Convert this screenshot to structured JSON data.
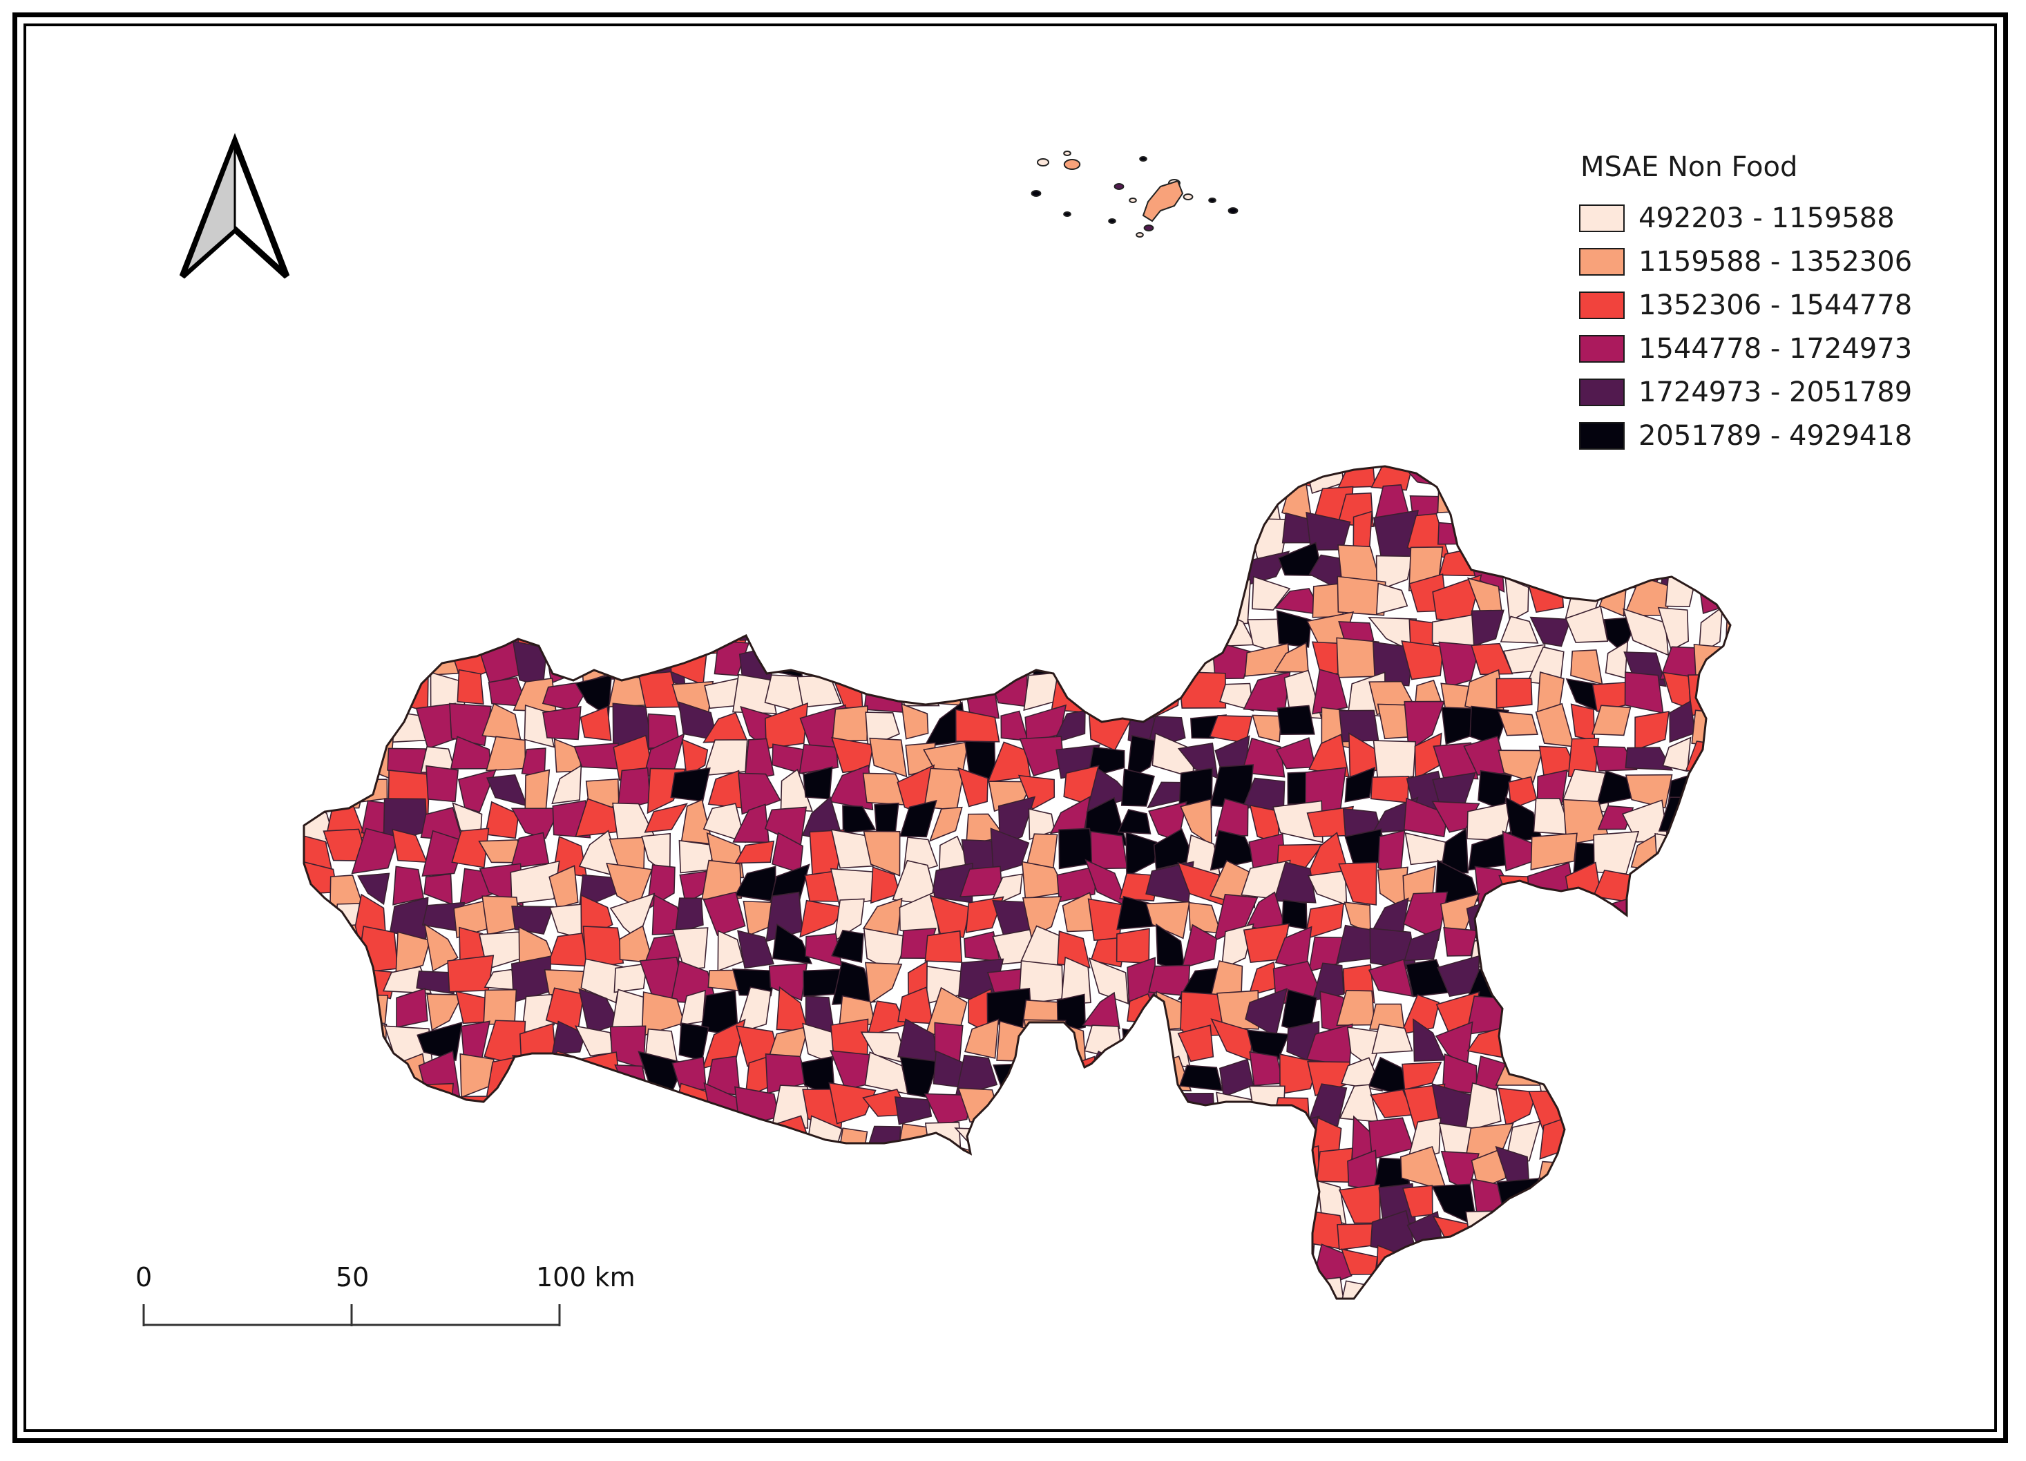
{
  "legend": {
    "title": "MSAE Non Food",
    "classes": [
      {
        "label": "492203 - 1159588",
        "color": "#fde8dc"
      },
      {
        "label": "1159588 - 1352306",
        "color": "#f8a27a"
      },
      {
        "label": "1352306 - 1544778",
        "color": "#f1433d"
      },
      {
        "label": "1544778 - 1724973",
        "color": "#ab1a5d"
      },
      {
        "label": "1724973 - 2051789",
        "color": "#521a4f"
      },
      {
        "label": "2051789 - 4929418",
        "color": "#04030e"
      }
    ]
  },
  "scale_bar": {
    "labels": [
      "0",
      "50",
      "100 km"
    ]
  },
  "icons": {
    "north_arrow": "north-arrow-icon"
  }
}
